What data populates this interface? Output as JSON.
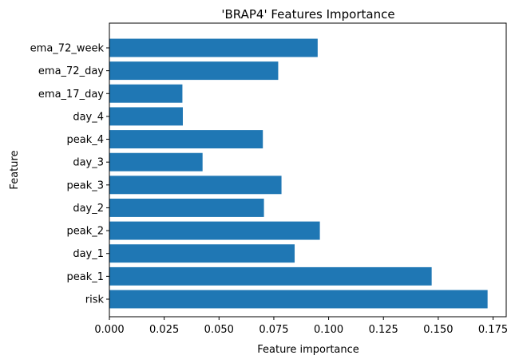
{
  "chart_data": {
    "type": "bar",
    "orientation": "horizontal",
    "title": "'BRAP4' Features Importance",
    "xlabel": "Feature importance",
    "ylabel": "Feature",
    "categories": [
      "risk",
      "peak_1",
      "day_1",
      "peak_2",
      "day_2",
      "peak_3",
      "day_3",
      "peak_4",
      "day_4",
      "ema_17_day",
      "ema_72_day",
      "ema_72_week"
    ],
    "values": [
      0.1725,
      0.147,
      0.0845,
      0.096,
      0.0705,
      0.0785,
      0.0425,
      0.07,
      0.0335,
      0.0333,
      0.077,
      0.095
    ],
    "xlim": [
      0,
      0.181
    ],
    "xticks": [
      "0.000",
      "0.025",
      "0.050",
      "0.075",
      "0.100",
      "0.125",
      "0.150",
      "0.175"
    ],
    "grid": false,
    "bar_color": "#1f77b4"
  }
}
